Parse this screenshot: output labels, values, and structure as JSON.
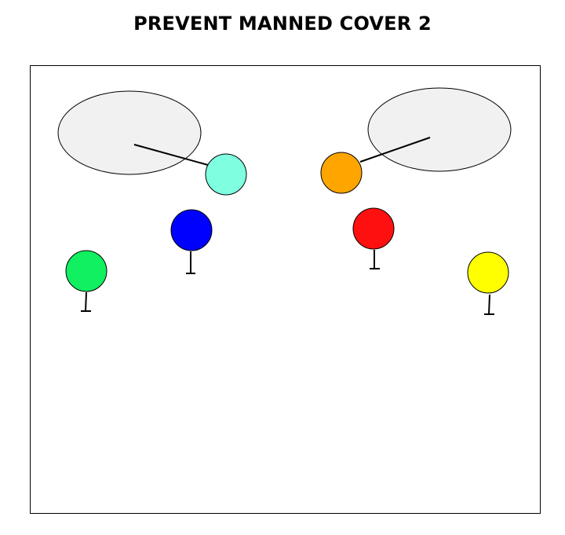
{
  "title": "PREVENT MANNED COVER 2",
  "defenders": [
    {
      "id": "zone-safety-left",
      "role": "deep-zone-safety",
      "color": "#7fffe0"
    },
    {
      "id": "zone-safety-right",
      "role": "deep-zone-safety",
      "color": "#ffa500"
    },
    {
      "id": "man-defender-blue",
      "role": "man-coverage",
      "color": "#0000ff"
    },
    {
      "id": "man-defender-red",
      "role": "man-coverage",
      "color": "#ff1010"
    },
    {
      "id": "man-defender-green",
      "role": "man-coverage",
      "color": "#10f060"
    },
    {
      "id": "man-defender-yellow",
      "role": "man-coverage",
      "color": "#ffff00"
    }
  ],
  "zones": [
    {
      "id": "deep-zone-left",
      "fill": "#f1f1f1"
    },
    {
      "id": "deep-zone-right",
      "fill": "#f1f1f1"
    }
  ]
}
